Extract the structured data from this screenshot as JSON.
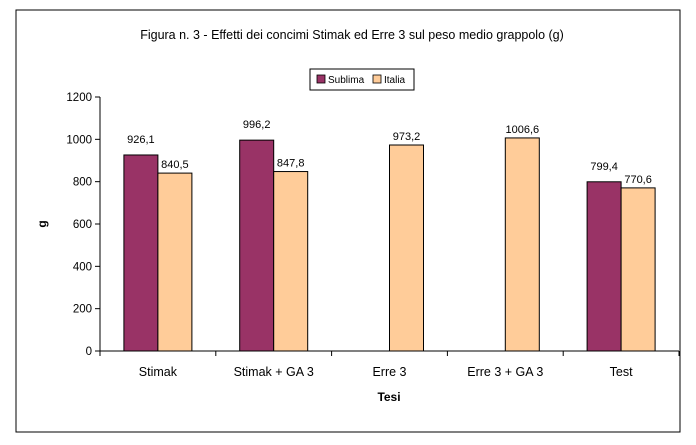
{
  "chart_data": {
    "type": "bar",
    "title": "Figura n. 3 - Effetti dei concimi Stimak ed Erre 3 sul peso medio grappolo (g)",
    "xlabel": "Tesi",
    "ylabel": "g",
    "ylim": [
      0,
      1200
    ],
    "yticks": [
      0,
      200,
      400,
      600,
      800,
      1000,
      1200
    ],
    "categories": [
      "Stimak",
      "Stimak + GA 3",
      "Erre 3",
      "Erre 3 + GA 3",
      "Test"
    ],
    "series": [
      {
        "name": "Sublima",
        "color": "#993366",
        "values": [
          926.1,
          996.2,
          null,
          null,
          799.4
        ],
        "labels": [
          "926,1",
          "996,2",
          "",
          "",
          "799,4"
        ]
      },
      {
        "name": "Italia",
        "color": "#FFCC99",
        "values": [
          840.5,
          847.8,
          973.2,
          1006.6,
          770.6
        ],
        "labels": [
          "840,5",
          "847,8",
          "973,2",
          "1006,6",
          "770,6"
        ]
      }
    ],
    "legend_position": "top-center",
    "grid": false
  }
}
